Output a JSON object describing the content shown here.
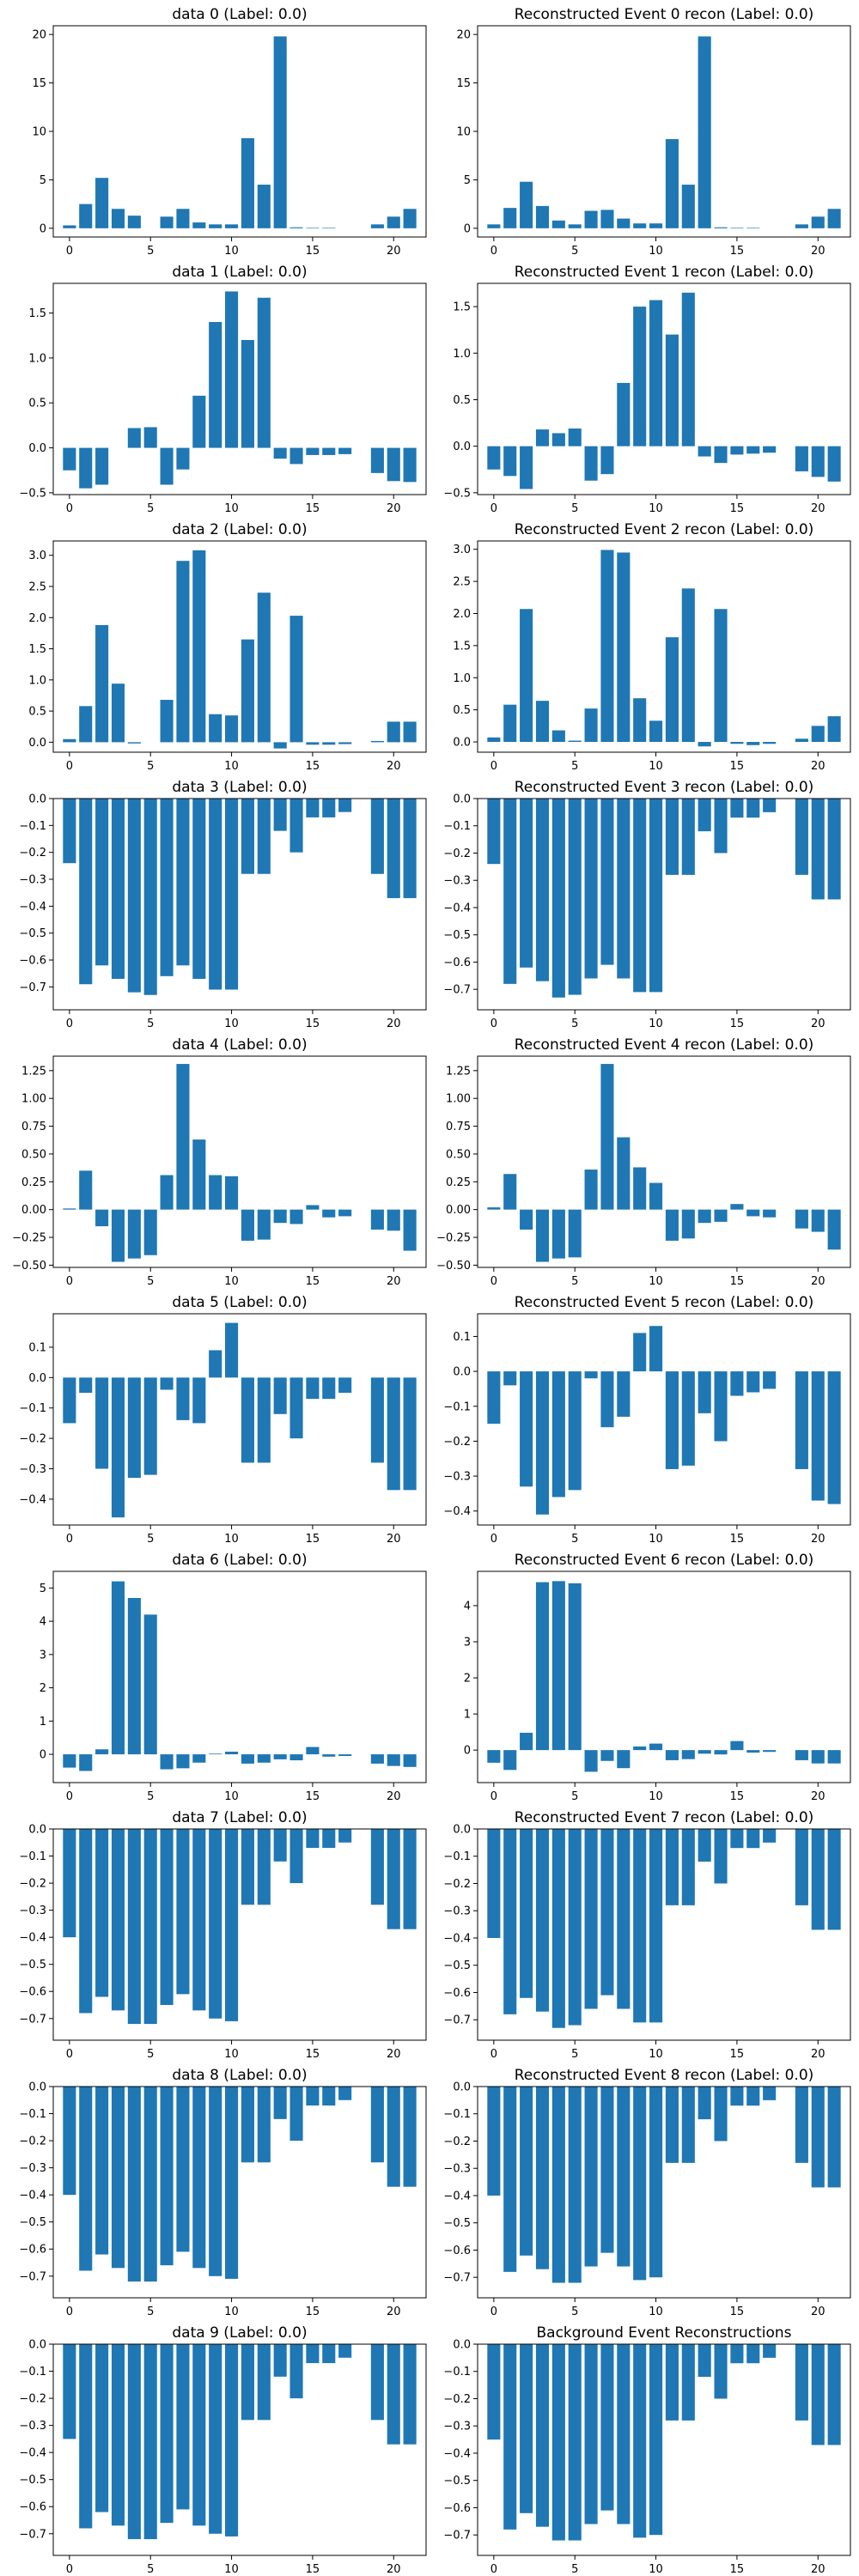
{
  "chart_data": [
    {
      "type": "bar",
      "title": "data 0 (Label: 0.0)",
      "ylim": [
        -0.9,
        20.9
      ],
      "yticks": [
        0,
        5,
        10,
        15,
        20
      ],
      "xticks": [
        0,
        5,
        10,
        15,
        20
      ],
      "categories": [
        0,
        1,
        2,
        3,
        4,
        5,
        6,
        7,
        8,
        9,
        10,
        11,
        12,
        13,
        14,
        15,
        16,
        17,
        18,
        19,
        20,
        21
      ],
      "values": [
        0.3,
        2.5,
        5.2,
        2.0,
        1.3,
        0,
        1.2,
        2.0,
        0.6,
        0.4,
        0.4,
        9.3,
        4.5,
        19.8,
        0.1,
        0.05,
        0.05,
        0,
        0,
        0.4,
        1.2,
        2.0
      ]
    },
    {
      "type": "bar",
      "title": "Reconstructed Event 0 recon (Label: 0.0)",
      "ylim": [
        -0.9,
        20.9
      ],
      "yticks": [
        0,
        5,
        10,
        15,
        20
      ],
      "xticks": [
        0,
        5,
        10,
        15,
        20
      ],
      "categories": [
        0,
        1,
        2,
        3,
        4,
        5,
        6,
        7,
        8,
        9,
        10,
        11,
        12,
        13,
        14,
        15,
        16,
        17,
        18,
        19,
        20,
        21
      ],
      "values": [
        0.4,
        2.1,
        4.8,
        2.3,
        0.8,
        0.4,
        1.8,
        1.9,
        1.0,
        0.5,
        0.5,
        9.2,
        4.5,
        19.8,
        0.1,
        0.05,
        0.05,
        0,
        0,
        0.4,
        1.2,
        2.0
      ]
    },
    {
      "type": "bar",
      "title": "data 1 (Label: 0.0)",
      "ylim": [
        -0.52,
        1.83
      ],
      "yticks": [
        -0.5,
        0.0,
        0.5,
        1.0,
        1.5
      ],
      "xticks": [
        0,
        5,
        10,
        15,
        20
      ],
      "categories": [
        0,
        1,
        2,
        3,
        4,
        5,
        6,
        7,
        8,
        9,
        10,
        11,
        12,
        13,
        14,
        15,
        16,
        17,
        18,
        19,
        20,
        21
      ],
      "values": [
        -0.25,
        -0.45,
        -0.41,
        0,
        0.22,
        0.23,
        -0.41,
        -0.24,
        0.58,
        1.4,
        1.74,
        1.2,
        1.67,
        -0.12,
        -0.18,
        -0.08,
        -0.08,
        -0.07,
        0,
        -0.28,
        -0.37,
        -0.38
      ]
    },
    {
      "type": "bar",
      "title": "Reconstructed Event 1 recon (Label: 0.0)",
      "ylim": [
        -0.52,
        1.75
      ],
      "yticks": [
        -0.5,
        0.0,
        0.5,
        1.0,
        1.5
      ],
      "xticks": [
        0,
        5,
        10,
        15,
        20
      ],
      "categories": [
        0,
        1,
        2,
        3,
        4,
        5,
        6,
        7,
        8,
        9,
        10,
        11,
        12,
        13,
        14,
        15,
        16,
        17,
        18,
        19,
        20,
        21
      ],
      "values": [
        -0.25,
        -0.32,
        -0.46,
        0.18,
        0.14,
        0.19,
        -0.37,
        -0.3,
        0.68,
        1.5,
        1.57,
        1.2,
        1.65,
        -0.11,
        -0.18,
        -0.09,
        -0.08,
        -0.07,
        0,
        -0.27,
        -0.33,
        -0.38
      ]
    },
    {
      "type": "bar",
      "title": "data 2 (Label: 0.0)",
      "ylim": [
        -0.16,
        3.23
      ],
      "yticks": [
        0.0,
        0.5,
        1.0,
        1.5,
        2.0,
        2.5,
        3.0
      ],
      "xticks": [
        0,
        5,
        10,
        15,
        20
      ],
      "categories": [
        0,
        1,
        2,
        3,
        4,
        5,
        6,
        7,
        8,
        9,
        10,
        11,
        12,
        13,
        14,
        15,
        16,
        17,
        18,
        19,
        20,
        21
      ],
      "values": [
        0.05,
        0.58,
        1.88,
        0.94,
        -0.02,
        0,
        0.68,
        2.91,
        3.08,
        0.45,
        0.43,
        1.65,
        2.4,
        -0.1,
        2.03,
        -0.04,
        -0.04,
        -0.03,
        0,
        0.02,
        0.33,
        0.33
      ]
    },
    {
      "type": "bar",
      "title": "Reconstructed Event 2 recon (Label: 0.0)",
      "ylim": [
        -0.16,
        3.13
      ],
      "yticks": [
        0.0,
        0.5,
        1.0,
        1.5,
        2.0,
        2.5,
        3.0
      ],
      "xticks": [
        0,
        5,
        10,
        15,
        20
      ],
      "categories": [
        0,
        1,
        2,
        3,
        4,
        5,
        6,
        7,
        8,
        9,
        10,
        11,
        12,
        13,
        14,
        15,
        16,
        17,
        18,
        19,
        20,
        21
      ],
      "values": [
        0.07,
        0.58,
        2.07,
        0.64,
        0.18,
        0.02,
        0.52,
        2.99,
        2.95,
        0.68,
        0.33,
        1.63,
        2.39,
        -0.07,
        2.07,
        -0.03,
        -0.05,
        -0.03,
        0,
        0.05,
        0.25,
        0.4
      ]
    },
    {
      "type": "bar",
      "title": "data 3 (Label: 0.0)",
      "ylim": [
        -0.785,
        0.0
      ],
      "yticks": [
        -0.7,
        -0.6,
        -0.5,
        -0.4,
        -0.3,
        -0.2,
        -0.1,
        0.0
      ],
      "xticks": [
        0,
        5,
        10,
        15,
        20
      ],
      "categories": [
        0,
        1,
        2,
        3,
        4,
        5,
        6,
        7,
        8,
        9,
        10,
        11,
        12,
        13,
        14,
        15,
        16,
        17,
        18,
        19,
        20,
        21
      ],
      "values": [
        -0.24,
        -0.69,
        -0.62,
        -0.67,
        -0.72,
        -0.73,
        -0.66,
        -0.62,
        -0.67,
        -0.71,
        -0.71,
        -0.28,
        -0.28,
        -0.12,
        -0.2,
        -0.07,
        -0.07,
        -0.05,
        0,
        -0.28,
        -0.37,
        -0.37
      ]
    },
    {
      "type": "bar",
      "title": "Reconstructed Event 3 recon (Label: 0.0)",
      "ylim": [
        -0.775,
        0.0
      ],
      "yticks": [
        -0.7,
        -0.6,
        -0.5,
        -0.4,
        -0.3,
        -0.2,
        -0.1,
        0.0
      ],
      "xticks": [
        0,
        5,
        10,
        15,
        20
      ],
      "categories": [
        0,
        1,
        2,
        3,
        4,
        5,
        6,
        7,
        8,
        9,
        10,
        11,
        12,
        13,
        14,
        15,
        16,
        17,
        18,
        19,
        20,
        21
      ],
      "values": [
        -0.24,
        -0.68,
        -0.62,
        -0.67,
        -0.73,
        -0.72,
        -0.66,
        -0.61,
        -0.66,
        -0.71,
        -0.71,
        -0.28,
        -0.28,
        -0.12,
        -0.2,
        -0.07,
        -0.07,
        -0.05,
        0,
        -0.28,
        -0.37,
        -0.37
      ]
    },
    {
      "type": "bar",
      "title": "data 4 (Label: 0.0)",
      "ylim": [
        -0.52,
        1.38
      ],
      "yticks": [
        -0.5,
        -0.25,
        0.0,
        0.25,
        0.5,
        0.75,
        1.0,
        1.25
      ],
      "xticks": [
        0,
        5,
        10,
        15,
        20
      ],
      "categories": [
        0,
        1,
        2,
        3,
        4,
        5,
        6,
        7,
        8,
        9,
        10,
        11,
        12,
        13,
        14,
        15,
        16,
        17,
        18,
        19,
        20,
        21
      ],
      "values": [
        0.01,
        0.35,
        -0.15,
        -0.47,
        -0.44,
        -0.41,
        0.31,
        1.31,
        0.63,
        0.31,
        0.3,
        -0.28,
        -0.27,
        -0.12,
        -0.13,
        0.04,
        -0.07,
        -0.06,
        0,
        -0.18,
        -0.19,
        -0.37
      ]
    },
    {
      "type": "bar",
      "title": "Reconstructed Event 4 recon (Label: 0.0)",
      "ylim": [
        -0.52,
        1.38
      ],
      "yticks": [
        -0.5,
        -0.25,
        0.0,
        0.25,
        0.5,
        0.75,
        1.0,
        1.25
      ],
      "xticks": [
        0,
        5,
        10,
        15,
        20
      ],
      "categories": [
        0,
        1,
        2,
        3,
        4,
        5,
        6,
        7,
        8,
        9,
        10,
        11,
        12,
        13,
        14,
        15,
        16,
        17,
        18,
        19,
        20,
        21
      ],
      "values": [
        0.02,
        0.32,
        -0.18,
        -0.47,
        -0.44,
        -0.43,
        0.36,
        1.31,
        0.65,
        0.38,
        0.24,
        -0.28,
        -0.26,
        -0.12,
        -0.11,
        0.05,
        -0.06,
        -0.07,
        0,
        -0.17,
        -0.2,
        -0.36
      ]
    },
    {
      "type": "bar",
      "title": "data 5 (Label: 0.0)",
      "ylim": [
        -0.485,
        0.21
      ],
      "yticks": [
        -0.4,
        -0.3,
        -0.2,
        -0.1,
        0.0,
        0.1
      ],
      "xticks": [
        0,
        5,
        10,
        15,
        20
      ],
      "categories": [
        0,
        1,
        2,
        3,
        4,
        5,
        6,
        7,
        8,
        9,
        10,
        11,
        12,
        13,
        14,
        15,
        16,
        17,
        18,
        19,
        20,
        21
      ],
      "values": [
        -0.15,
        -0.05,
        -0.3,
        -0.46,
        -0.33,
        -0.32,
        -0.04,
        -0.14,
        -0.15,
        0.09,
        0.18,
        -0.28,
        -0.28,
        -0.12,
        -0.2,
        -0.07,
        -0.07,
        -0.05,
        0,
        -0.28,
        -0.37,
        -0.37
      ]
    },
    {
      "type": "bar",
      "title": "Reconstructed Event 5 recon (Label: 0.0)",
      "ylim": [
        -0.44,
        0.165
      ],
      "yticks": [
        -0.4,
        -0.3,
        -0.2,
        -0.1,
        0.0,
        0.1
      ],
      "xticks": [
        0,
        5,
        10,
        15,
        20
      ],
      "categories": [
        0,
        1,
        2,
        3,
        4,
        5,
        6,
        7,
        8,
        9,
        10,
        11,
        12,
        13,
        14,
        15,
        16,
        17,
        18,
        19,
        20,
        21
      ],
      "values": [
        -0.15,
        -0.04,
        -0.33,
        -0.41,
        -0.36,
        -0.34,
        -0.02,
        -0.16,
        -0.13,
        0.11,
        0.13,
        -0.28,
        -0.27,
        -0.12,
        -0.2,
        -0.07,
        -0.06,
        -0.05,
        0,
        -0.28,
        -0.37,
        -0.38
      ]
    },
    {
      "type": "bar",
      "title": "data 6 (Label: 0.0)",
      "ylim": [
        -0.85,
        5.5
      ],
      "yticks": [
        0,
        1,
        2,
        3,
        4,
        5
      ],
      "xticks": [
        0,
        5,
        10,
        15,
        20
      ],
      "categories": [
        0,
        1,
        2,
        3,
        4,
        5,
        6,
        7,
        8,
        9,
        10,
        11,
        12,
        13,
        14,
        15,
        16,
        17,
        18,
        19,
        20,
        21
      ],
      "values": [
        -0.4,
        -0.5,
        0.15,
        5.2,
        4.7,
        4.2,
        -0.45,
        -0.42,
        -0.25,
        0.02,
        0.08,
        -0.28,
        -0.25,
        -0.15,
        -0.18,
        0.22,
        -0.07,
        -0.05,
        0,
        -0.28,
        -0.35,
        -0.38
      ]
    },
    {
      "type": "bar",
      "title": "Reconstructed Event 6 recon (Label: 0.0)",
      "ylim": [
        -0.9,
        4.95
      ],
      "yticks": [
        0,
        1,
        2,
        3,
        4
      ],
      "xticks": [
        0,
        5,
        10,
        15,
        20
      ],
      "categories": [
        0,
        1,
        2,
        3,
        4,
        5,
        6,
        7,
        8,
        9,
        10,
        11,
        12,
        13,
        14,
        15,
        16,
        17,
        18,
        19,
        20,
        21
      ],
      "values": [
        -0.35,
        -0.55,
        0.48,
        4.65,
        4.68,
        4.62,
        -0.6,
        -0.3,
        -0.5,
        0.1,
        0.18,
        -0.28,
        -0.25,
        -0.1,
        -0.12,
        0.25,
        -0.07,
        -0.05,
        0,
        -0.28,
        -0.37,
        -0.37
      ]
    },
    {
      "type": "bar",
      "title": "data 7 (Label: 0.0)",
      "ylim": [
        -0.78,
        0.0
      ],
      "yticks": [
        -0.7,
        -0.6,
        -0.5,
        -0.4,
        -0.3,
        -0.2,
        -0.1,
        0.0
      ],
      "xticks": [
        0,
        5,
        10,
        15,
        20
      ],
      "categories": [
        0,
        1,
        2,
        3,
        4,
        5,
        6,
        7,
        8,
        9,
        10,
        11,
        12,
        13,
        14,
        15,
        16,
        17,
        18,
        19,
        20,
        21
      ],
      "values": [
        -0.4,
        -0.68,
        -0.62,
        -0.67,
        -0.72,
        -0.72,
        -0.65,
        -0.61,
        -0.67,
        -0.7,
        -0.71,
        -0.28,
        -0.28,
        -0.12,
        -0.2,
        -0.07,
        -0.07,
        -0.05,
        0,
        -0.28,
        -0.37,
        -0.37
      ]
    },
    {
      "type": "bar",
      "title": "Reconstructed Event 7 recon (Label: 0.0)",
      "ylim": [
        -0.775,
        0.0
      ],
      "yticks": [
        -0.7,
        -0.6,
        -0.5,
        -0.4,
        -0.3,
        -0.2,
        -0.1,
        0.0
      ],
      "xticks": [
        0,
        5,
        10,
        15,
        20
      ],
      "categories": [
        0,
        1,
        2,
        3,
        4,
        5,
        6,
        7,
        8,
        9,
        10,
        11,
        12,
        13,
        14,
        15,
        16,
        17,
        18,
        19,
        20,
        21
      ],
      "values": [
        -0.4,
        -0.68,
        -0.62,
        -0.67,
        -0.73,
        -0.72,
        -0.66,
        -0.61,
        -0.66,
        -0.71,
        -0.71,
        -0.28,
        -0.28,
        -0.12,
        -0.2,
        -0.07,
        -0.07,
        -0.05,
        0,
        -0.28,
        -0.37,
        -0.37
      ]
    },
    {
      "type": "bar",
      "title": "data 8 (Label: 0.0)",
      "ylim": [
        -0.78,
        0.0
      ],
      "yticks": [
        -0.7,
        -0.6,
        -0.5,
        -0.4,
        -0.3,
        -0.2,
        -0.1,
        0.0
      ],
      "xticks": [
        0,
        5,
        10,
        15,
        20
      ],
      "categories": [
        0,
        1,
        2,
        3,
        4,
        5,
        6,
        7,
        8,
        9,
        10,
        11,
        12,
        13,
        14,
        15,
        16,
        17,
        18,
        19,
        20,
        21
      ],
      "values": [
        -0.4,
        -0.68,
        -0.62,
        -0.67,
        -0.72,
        -0.72,
        -0.66,
        -0.61,
        -0.67,
        -0.7,
        -0.71,
        -0.28,
        -0.28,
        -0.12,
        -0.2,
        -0.07,
        -0.07,
        -0.05,
        0,
        -0.28,
        -0.37,
        -0.37
      ]
    },
    {
      "type": "bar",
      "title": "Reconstructed Event 8 recon (Label: 0.0)",
      "ylim": [
        -0.775,
        0.0
      ],
      "yticks": [
        -0.7,
        -0.6,
        -0.5,
        -0.4,
        -0.3,
        -0.2,
        -0.1,
        0.0
      ],
      "xticks": [
        0,
        5,
        10,
        15,
        20
      ],
      "categories": [
        0,
        1,
        2,
        3,
        4,
        5,
        6,
        7,
        8,
        9,
        10,
        11,
        12,
        13,
        14,
        15,
        16,
        17,
        18,
        19,
        20,
        21
      ],
      "values": [
        -0.4,
        -0.68,
        -0.62,
        -0.67,
        -0.72,
        -0.72,
        -0.66,
        -0.61,
        -0.66,
        -0.71,
        -0.7,
        -0.28,
        -0.28,
        -0.12,
        -0.2,
        -0.07,
        -0.07,
        -0.05,
        0,
        -0.28,
        -0.37,
        -0.37
      ]
    },
    {
      "type": "bar",
      "title": "data 9 (Label: 0.0)",
      "ylim": [
        -0.78,
        0.0
      ],
      "yticks": [
        -0.7,
        -0.6,
        -0.5,
        -0.4,
        -0.3,
        -0.2,
        -0.1,
        0.0
      ],
      "xticks": [
        0,
        5,
        10,
        15,
        20
      ],
      "categories": [
        0,
        1,
        2,
        3,
        4,
        5,
        6,
        7,
        8,
        9,
        10,
        11,
        12,
        13,
        14,
        15,
        16,
        17,
        18,
        19,
        20,
        21
      ],
      "values": [
        -0.35,
        -0.68,
        -0.62,
        -0.67,
        -0.72,
        -0.72,
        -0.66,
        -0.61,
        -0.67,
        -0.7,
        -0.71,
        -0.28,
        -0.28,
        -0.12,
        -0.2,
        -0.07,
        -0.07,
        -0.05,
        0,
        -0.28,
        -0.37,
        -0.37
      ]
    },
    {
      "type": "bar",
      "title": "Background Event Reconstructions",
      "ylim": [
        -0.775,
        0.0
      ],
      "yticks": [
        -0.7,
        -0.6,
        -0.5,
        -0.4,
        -0.3,
        -0.2,
        -0.1,
        0.0
      ],
      "xticks": [
        0,
        5,
        10,
        15,
        20
      ],
      "categories": [
        0,
        1,
        2,
        3,
        4,
        5,
        6,
        7,
        8,
        9,
        10,
        11,
        12,
        13,
        14,
        15,
        16,
        17,
        18,
        19,
        20,
        21
      ],
      "values": [
        -0.35,
        -0.68,
        -0.62,
        -0.67,
        -0.72,
        -0.72,
        -0.66,
        -0.61,
        -0.66,
        -0.71,
        -0.7,
        -0.28,
        -0.28,
        -0.12,
        -0.2,
        -0.07,
        -0.07,
        -0.05,
        0,
        -0.28,
        -0.37,
        -0.37
      ]
    }
  ],
  "colors": {
    "bar": "#1f77b4",
    "axes": "#000000"
  }
}
